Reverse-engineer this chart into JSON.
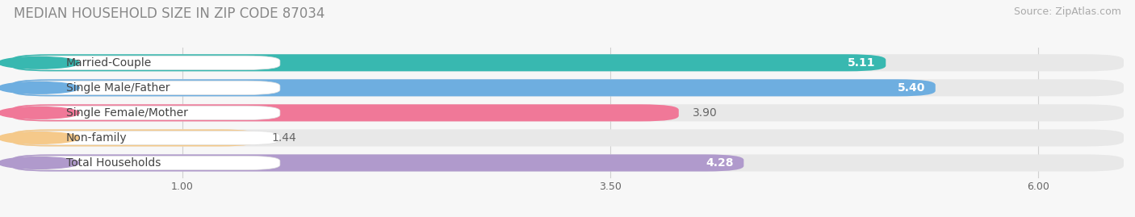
{
  "title": "MEDIAN HOUSEHOLD SIZE IN ZIP CODE 87034",
  "source": "Source: ZipAtlas.com",
  "categories": [
    "Married-Couple",
    "Single Male/Father",
    "Single Female/Mother",
    "Non-family",
    "Total Households"
  ],
  "values": [
    5.11,
    5.4,
    3.9,
    1.44,
    4.28
  ],
  "bar_colors": [
    "#38b8b0",
    "#6eaee0",
    "#f07898",
    "#f5c98a",
    "#b09acc"
  ],
  "value_text_colors": [
    "white",
    "white",
    "#666666",
    "#666666",
    "white"
  ],
  "xticks": [
    1.0,
    3.5,
    6.0
  ],
  "xmin": 0.0,
  "xmax": 6.5,
  "background_color": "#f7f7f7",
  "bar_bg_color": "#e8e8e8",
  "label_bg_color": "#ffffff",
  "title_fontsize": 12,
  "source_fontsize": 9,
  "label_fontsize": 10,
  "value_fontsize": 10,
  "bar_height": 0.68
}
